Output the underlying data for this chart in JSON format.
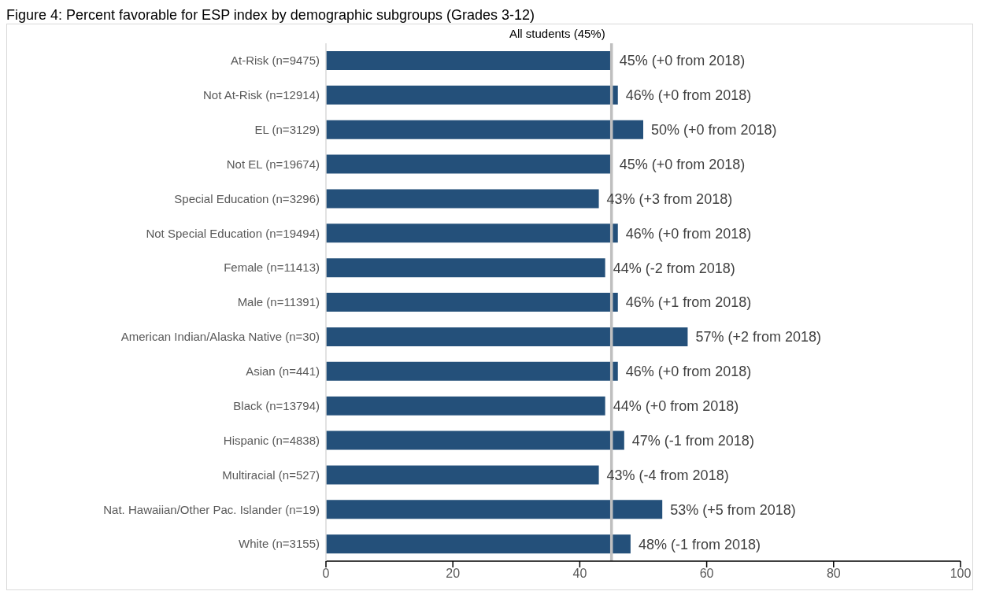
{
  "chart_data": {
    "type": "bar",
    "orientation": "horizontal",
    "title": "Figure 4: Percent favorable for ESP index by demographic subgroups (Grades 3-12)",
    "categories": [
      "At-Risk (n=9475)",
      "Not At-Risk (n=12914)",
      "EL (n=3129)",
      "Not EL (n=19674)",
      "Special Education (n=3296)",
      "Not Special Education (n=19494)",
      "Female (n=11413)",
      "Male (n=11391)",
      "American Indian/Alaska Native (n=30)",
      "Asian (n=441)",
      "Black (n=13794)",
      "Hispanic (n=4838)",
      "Multiracial (n=527)",
      "Nat. Hawaiian/Other Pac. Islander (n=19)",
      "White (n=3155)"
    ],
    "values": [
      45,
      46,
      50,
      45,
      43,
      46,
      44,
      46,
      57,
      46,
      44,
      47,
      43,
      53,
      48
    ],
    "value_labels": [
      "45% (+0 from 2018)",
      "46% (+0 from 2018)",
      "50% (+0 from 2018)",
      "45% (+0 from 2018)",
      "43% (+3 from 2018)",
      "46% (+0 from 2018)",
      "44% (-2 from 2018)",
      "46% (+1 from 2018)",
      "57% (+2 from 2018)",
      "46% (+0 from 2018)",
      "44% (+0 from 2018)",
      "47% (-1 from 2018)",
      "43% (-4 from 2018)",
      "53% (+5 from 2018)",
      "48% (-1 from 2018)"
    ],
    "color": "#24507a",
    "xlim": [
      0,
      100
    ],
    "xticks": [
      0,
      20,
      40,
      60,
      80,
      100
    ],
    "ref_lines": [
      {
        "axis": "x",
        "value": 45,
        "label": "All students (45%)",
        "color": "#bfbfbf"
      }
    ]
  }
}
